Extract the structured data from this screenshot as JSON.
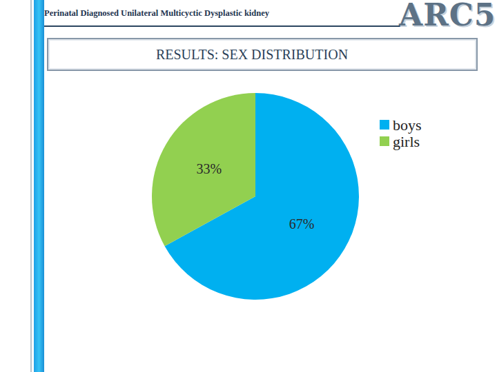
{
  "slide": {
    "header": "Perinatal Diagnosed Unilateral Multicyctic Dysplastic kidney",
    "logo": "ARC5"
  },
  "chart_data": {
    "type": "pie",
    "title": "RESULTS: SEX DISTRIBUTION",
    "categories": [
      "boys",
      "girls"
    ],
    "values": [
      67,
      33
    ],
    "value_labels": [
      "67%",
      "33%"
    ],
    "colors": [
      "#00b0f0",
      "#92d050"
    ],
    "data_labels": true,
    "legend": "upper right"
  }
}
